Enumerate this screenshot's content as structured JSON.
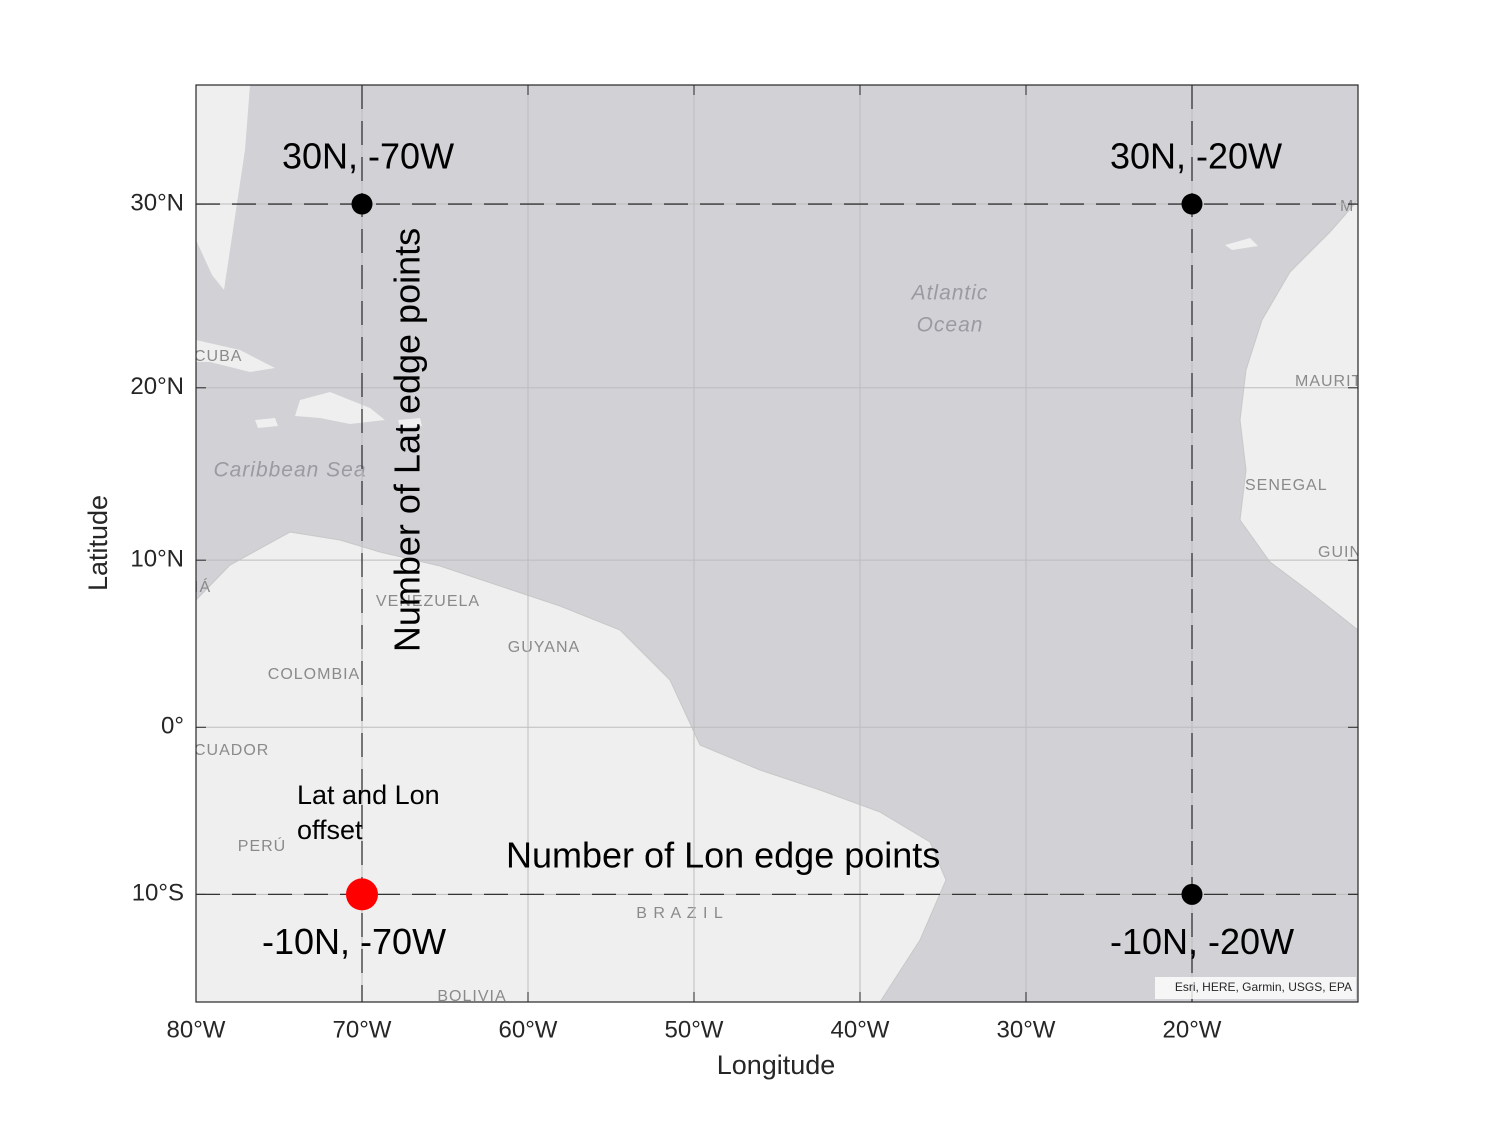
{
  "chart_data": {
    "type": "geoscatter",
    "projection": "mercator",
    "xlabel": "Longitude",
    "ylabel": "Latitude",
    "xlim": [
      -80,
      -10
    ],
    "ylim": [
      -16.3,
      36.0
    ],
    "xticks": [
      {
        "value": -80,
        "label": "80°W"
      },
      {
        "value": -70,
        "label": "70°W"
      },
      {
        "value": -60,
        "label": "60°W"
      },
      {
        "value": -50,
        "label": "50°W"
      },
      {
        "value": -40,
        "label": "40°W"
      },
      {
        "value": -30,
        "label": "30°W"
      },
      {
        "value": -20,
        "label": "20°W"
      }
    ],
    "yticks": [
      {
        "value": -10,
        "label": "10°S"
      },
      {
        "value": 0,
        "label": "0°"
      },
      {
        "value": 10,
        "label": "10°N"
      },
      {
        "value": 20,
        "label": "20°N"
      },
      {
        "value": 30,
        "label": "30°N"
      }
    ],
    "grid": true,
    "points": [
      {
        "lon": -70,
        "lat": 30,
        "label": "30N, -70W",
        "color": "#000000"
      },
      {
        "lon": -20,
        "lat": 30,
        "label": "30N, -20W",
        "color": "#000000"
      },
      {
        "lon": -20,
        "lat": -10,
        "label": "-10N, -20W",
        "color": "#000000"
      },
      {
        "lon": -70,
        "lat": -10,
        "label": "-10N, -70W",
        "color": "#ff0000"
      }
    ],
    "annotations": {
      "lat_edge": "Number of Lat edge points",
      "lon_edge": "Number of Lon edge points",
      "offset": [
        "Lat and Lon",
        "offset"
      ]
    },
    "basemap_labels": [
      "Atlantic",
      "Ocean",
      "Caribbean Sea",
      "CUBA",
      "VENEZUELA",
      "GUYANA",
      "COLOMBIA",
      "CUADOR",
      "PERÚ",
      "B R A Z I L",
      "BOLIVIA",
      "MAURIT",
      "SENEGAL",
      "GUIN",
      "M",
      "IÁ"
    ],
    "attribution": "Esri, HERE, Garmin, USGS, EPA"
  }
}
